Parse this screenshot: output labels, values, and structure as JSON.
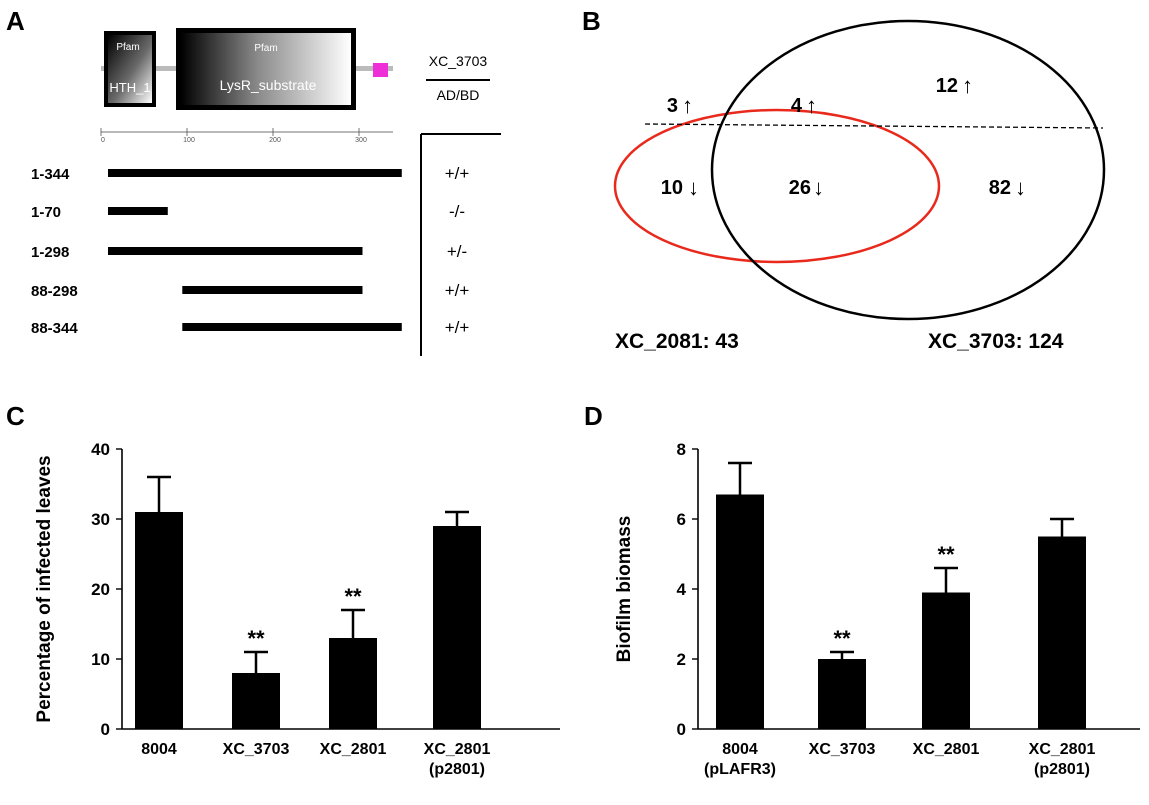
{
  "panels": {
    "A": {
      "letter": "A",
      "domains": [
        {
          "tag": "Pfam",
          "name": "HTH_1",
          "start": 3,
          "end": 57
        },
        {
          "tag": "Pfam",
          "name": "LysR_substrate",
          "start": 88,
          "end": 294
        }
      ],
      "protein_length": 344,
      "ruler_ticks": [
        {
          "label": "0",
          "pos": 0
        },
        {
          "label": "100",
          "pos": 100
        },
        {
          "label": "200",
          "pos": 200
        },
        {
          "label": "300",
          "pos": 300
        }
      ],
      "header_top": "XC_3703",
      "header_bottom": "AD/BD",
      "constructs": [
        {
          "label": "1-344",
          "start": 1,
          "end": 344,
          "result": "+/+"
        },
        {
          "label": "1-70",
          "start": 1,
          "end": 70,
          "result": "-/-"
        },
        {
          "label": "1-298",
          "start": 1,
          "end": 298,
          "result": "+/-"
        },
        {
          "label": "88-298",
          "start": 88,
          "end": 298,
          "result": "+/+"
        },
        {
          "label": "88-344",
          "start": 88,
          "end": 344,
          "result": "+/+"
        }
      ]
    },
    "B": {
      "letter": "B",
      "left_only_up": "3",
      "overlap_up": "4",
      "right_only_up": "12",
      "left_only_down": "10",
      "overlap_down": "26",
      "right_only_down": "82",
      "left_label": "XC_2081: 43",
      "right_label": "XC_3703: 124",
      "left_color": "#e8291c",
      "right_color": "#000000"
    },
    "C": {
      "letter": "C"
    },
    "D": {
      "letter": "D"
    }
  },
  "chart_data": [
    {
      "type": "bar",
      "panel": "C",
      "categories": [
        [
          "8004"
        ],
        [
          "XC_3703"
        ],
        [
          "XC_2801"
        ],
        [
          "XC_2801",
          "(p2801)"
        ]
      ],
      "values": [
        31,
        8,
        13,
        29
      ],
      "errors": [
        5,
        3,
        4,
        2
      ],
      "significance": [
        "",
        "**",
        "**",
        ""
      ],
      "ylabel": "Percentage of infected leaves",
      "ylim": [
        0,
        40
      ],
      "yticks": [
        0,
        10,
        20,
        30,
        40
      ],
      "bar_color": "#000000"
    },
    {
      "type": "bar",
      "panel": "D",
      "categories": [
        [
          "8004",
          "(pLAFR3)"
        ],
        [
          "XC_3703"
        ],
        [
          "XC_2801"
        ],
        [
          "XC_2801",
          "(p2801)"
        ]
      ],
      "values": [
        6.7,
        2.0,
        3.9,
        5.5
      ],
      "errors": [
        0.9,
        0.2,
        0.7,
        0.5
      ],
      "significance": [
        "",
        "**",
        "**",
        ""
      ],
      "ylabel": "Biofilm biomass",
      "ylim": [
        0,
        8
      ],
      "yticks": [
        0,
        2,
        4,
        6,
        8
      ],
      "bar_color": "#000000"
    }
  ]
}
